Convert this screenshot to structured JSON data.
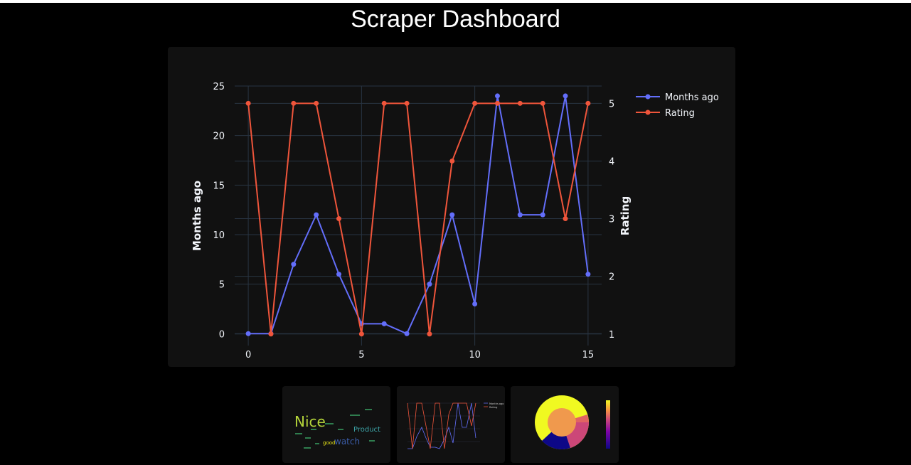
{
  "page": {
    "title": "Scraper Dashboard"
  },
  "chart_data": {
    "type": "line",
    "x": [
      0,
      1,
      2,
      3,
      4,
      5,
      6,
      7,
      8,
      9,
      10,
      11,
      12,
      13,
      14,
      15
    ],
    "series": [
      {
        "name": "Months ago",
        "axis": "left",
        "color": "#636efa",
        "values": [
          0,
          0,
          7,
          12,
          6,
          1,
          1,
          0,
          5,
          12,
          3,
          24,
          12,
          12,
          24,
          6
        ]
      },
      {
        "name": "Rating",
        "axis": "right",
        "color": "#ef553b",
        "values": [
          5,
          1,
          5,
          5,
          3,
          1,
          5,
          5,
          1,
          4,
          5,
          5,
          5,
          5,
          3,
          5
        ]
      }
    ],
    "xticks": [
      0,
      5,
      10,
      15
    ],
    "yticks_left": [
      0,
      5,
      10,
      15,
      20,
      25
    ],
    "yticks_right": [
      1,
      2,
      3,
      4,
      5
    ],
    "xlim": [
      -0.6,
      15.6
    ],
    "ylim_left": [
      -1.2,
      25.0
    ],
    "ylim_right": [
      0.8,
      5.3
    ],
    "ylabel_left": "Months ago",
    "ylabel_right": "Rating",
    "grid": true,
    "legend_position": "top-right"
  },
  "thumbnails": [
    {
      "kind": "wordcloud",
      "words": [
        "Nice",
        "Product",
        "good",
        "watch"
      ]
    },
    {
      "kind": "line-chart",
      "legend": [
        "Months ago",
        "Rating"
      ]
    },
    {
      "kind": "sunburst"
    }
  ]
}
